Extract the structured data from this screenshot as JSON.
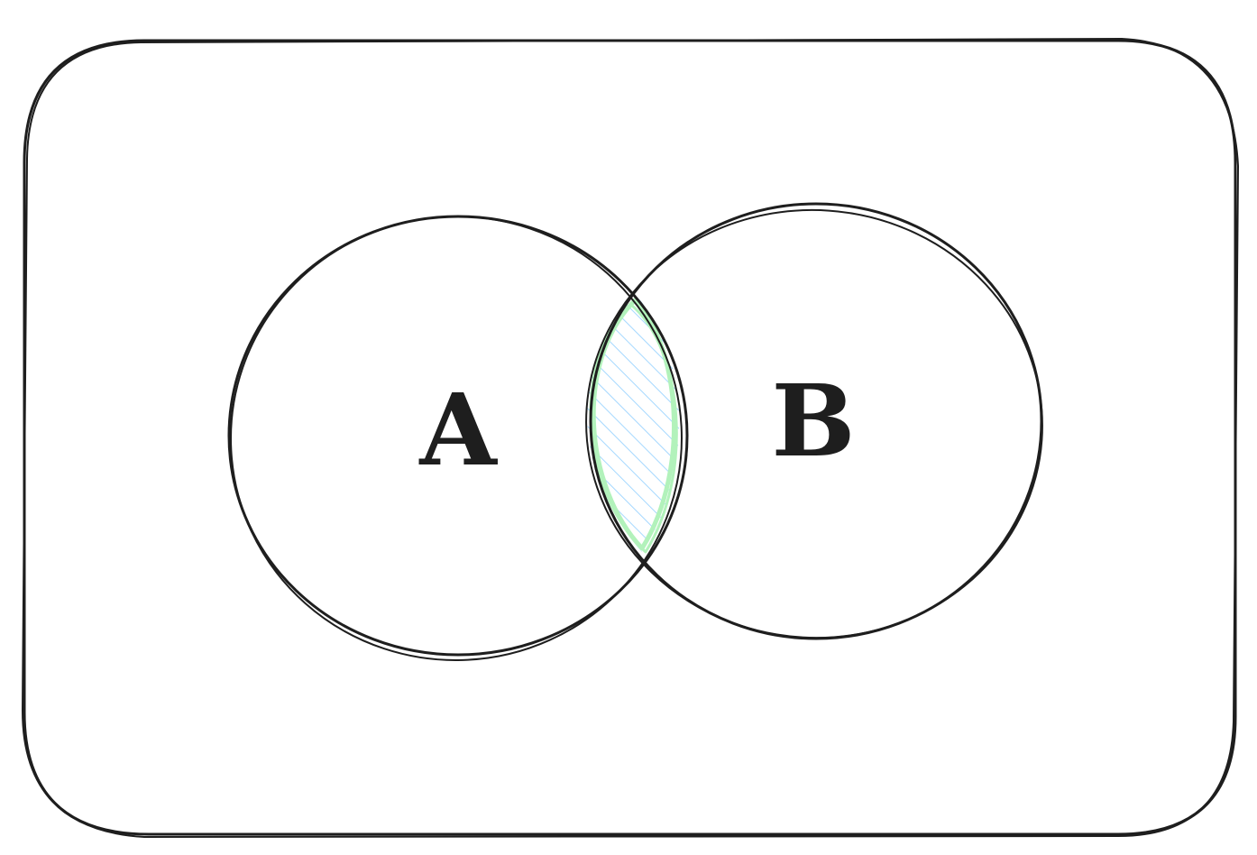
{
  "diagram": {
    "set_a_label": "A",
    "set_b_label": "B",
    "colors": {
      "stroke": "#1e1e1e",
      "intersection_outline": "#b2f2bb",
      "intersection_hatch": "#a5d8ff",
      "background": "#ffffff"
    }
  }
}
